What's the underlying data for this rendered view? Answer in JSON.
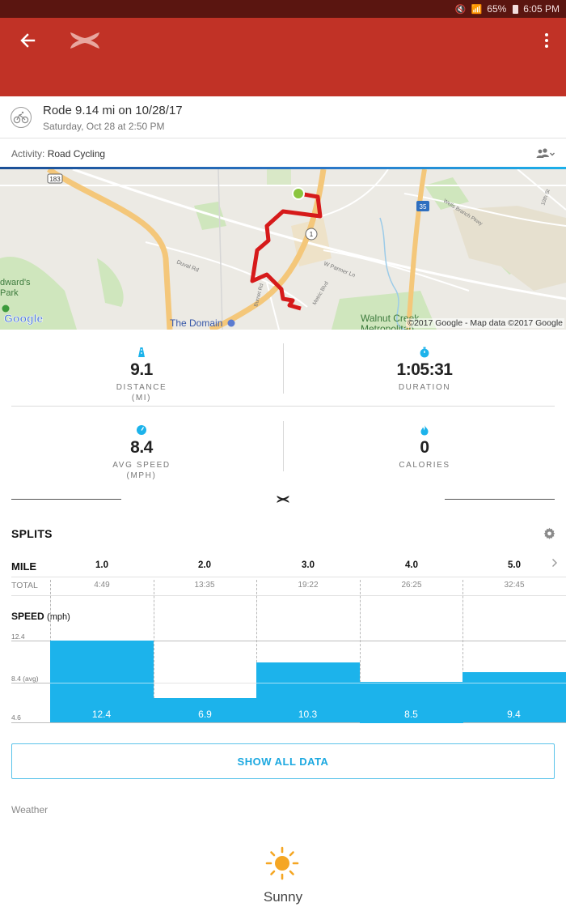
{
  "status_bar": {
    "battery": "65%",
    "time": "6:05 PM"
  },
  "workout": {
    "title": "Rode 9.14 mi on 10/28/17",
    "subtitle": "Saturday, Oct 28 at 2:50 PM",
    "activity_label": "Activity:",
    "activity_value": "Road Cycling"
  },
  "map": {
    "labels": {
      "route_183": "183",
      "route_1": "1",
      "route_35": "35",
      "park": "dward's\nPark",
      "duval": "Duval Rd",
      "parmer": "W Parmer Ln",
      "domain": "The Domain",
      "walnut": "Walnut Creek\nMetropolitan",
      "burnet": "Burnet Rd",
      "metric": "Metric Blvd",
      "wells": "Wells Branch Pkwy",
      "tenth": "10th St",
      "google": "Google"
    },
    "credit": "©2017 Google - Map data ©2017 Google"
  },
  "stats": {
    "distance": {
      "value": "9.1",
      "label_1": "DISTANCE",
      "label_2": "(MI)"
    },
    "duration": {
      "value": "1:05:31",
      "label_1": "DURATION"
    },
    "avg_speed": {
      "value": "8.4",
      "label_1": "AVG SPEED",
      "label_2": "(MPH)"
    },
    "calories": {
      "value": "0",
      "label_1": "CALORIES"
    }
  },
  "splits": {
    "title": "SPLITS",
    "mile_header": "MILE",
    "total_header": "TOTAL",
    "speed_header": "SPEED",
    "speed_unit": "(mph)",
    "y_labels": {
      "max": "12.4",
      "avg": "8.4 (avg)",
      "min": "4.6"
    },
    "miles": [
      "1.0",
      "2.0",
      "3.0",
      "4.0",
      "5.0"
    ],
    "totals": [
      "4:49",
      "13:35",
      "19:22",
      "26:25",
      "32:45"
    ],
    "speed_labels": [
      "12.4",
      "6.9",
      "10.3",
      "8.5",
      "9.4"
    ]
  },
  "chart_data": {
    "type": "bar",
    "categories": [
      "1.0",
      "2.0",
      "3.0",
      "4.0",
      "5.0"
    ],
    "values": [
      12.4,
      6.9,
      10.3,
      8.5,
      9.4
    ],
    "xlabel": "MILE",
    "ylabel": "SPEED (mph)",
    "ylim": [
      4.6,
      12.4
    ],
    "average": 8.4
  },
  "show_all_label": "SHOW ALL DATA",
  "weather": {
    "label": "Weather",
    "condition": "Sunny",
    "icon": "sun-icon"
  },
  "colors": {
    "brand_red": "#c13226",
    "accent_blue": "#1cb3eb",
    "route_red": "#d61a1a",
    "start_green": "#8bc53f"
  }
}
